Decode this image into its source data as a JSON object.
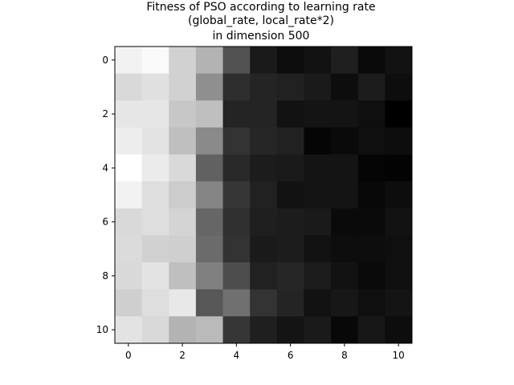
{
  "chart_data": {
    "type": "heatmap",
    "title_lines": [
      "Fitness of PSO according to learning rate",
      "(global_rate, local_rate*2)",
      "in dimension 500"
    ],
    "xlabel": "",
    "ylabel": "",
    "colormap": "gray",
    "rows": 11,
    "cols": 11,
    "xlim": [
      -0.5,
      10.5
    ],
    "ylim": [
      10.5,
      -0.5
    ],
    "x_ticks": [
      0,
      2,
      4,
      6,
      8,
      10
    ],
    "y_ticks": [
      0,
      2,
      4,
      6,
      8,
      10
    ],
    "grid": false,
    "values": [
      [
        0.95,
        0.98,
        0.82,
        0.7,
        0.32,
        0.1,
        0.05,
        0.07,
        0.12,
        0.04,
        0.07
      ],
      [
        0.85,
        0.88,
        0.82,
        0.56,
        0.18,
        0.14,
        0.13,
        0.1,
        0.05,
        0.11,
        0.05
      ],
      [
        0.9,
        0.9,
        0.78,
        0.75,
        0.14,
        0.14,
        0.07,
        0.08,
        0.08,
        0.06,
        0.0
      ],
      [
        0.93,
        0.89,
        0.75,
        0.54,
        0.2,
        0.15,
        0.13,
        0.02,
        0.04,
        0.06,
        0.05
      ],
      [
        1.0,
        0.92,
        0.85,
        0.38,
        0.16,
        0.11,
        0.1,
        0.08,
        0.08,
        0.02,
        0.01
      ],
      [
        0.95,
        0.87,
        0.8,
        0.52,
        0.21,
        0.13,
        0.07,
        0.08,
        0.08,
        0.03,
        0.05
      ],
      [
        0.85,
        0.87,
        0.83,
        0.4,
        0.19,
        0.12,
        0.11,
        0.1,
        0.04,
        0.04,
        0.07
      ],
      [
        0.86,
        0.82,
        0.81,
        0.42,
        0.2,
        0.1,
        0.11,
        0.07,
        0.05,
        0.05,
        0.06
      ],
      [
        0.85,
        0.89,
        0.75,
        0.5,
        0.3,
        0.13,
        0.15,
        0.11,
        0.07,
        0.04,
        0.06
      ],
      [
        0.81,
        0.87,
        0.91,
        0.34,
        0.44,
        0.2,
        0.14,
        0.07,
        0.09,
        0.06,
        0.08
      ],
      [
        0.89,
        0.85,
        0.7,
        0.73,
        0.21,
        0.12,
        0.08,
        0.1,
        0.03,
        0.09,
        0.05
      ]
    ]
  }
}
